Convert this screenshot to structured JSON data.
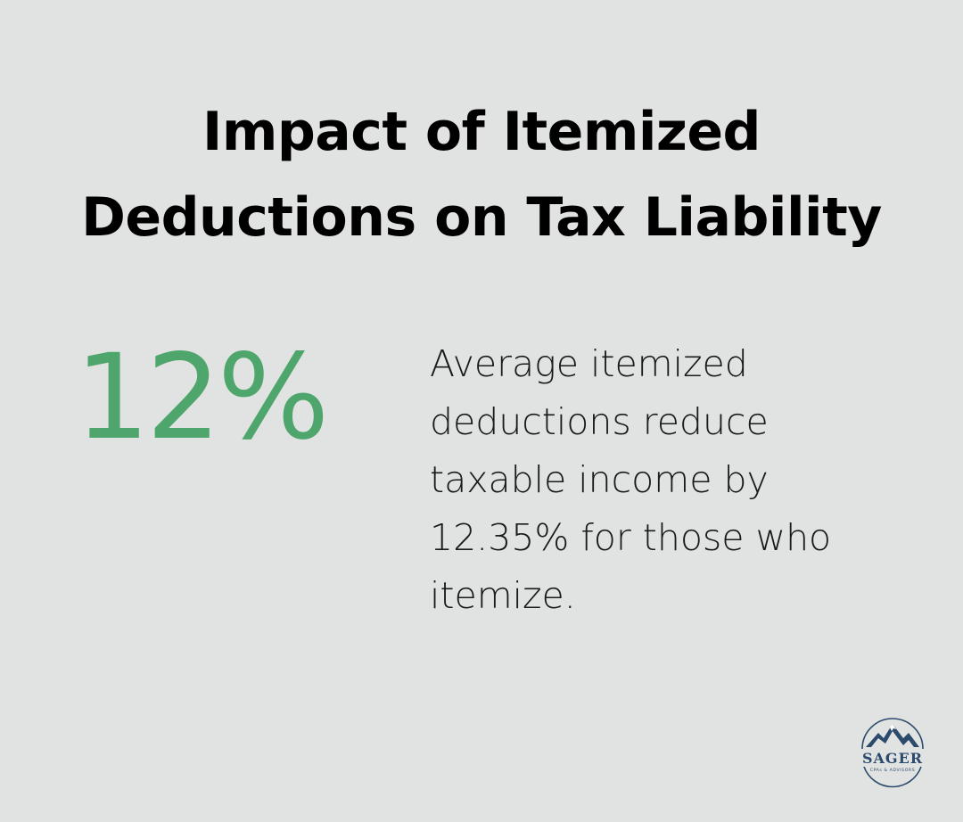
{
  "title": {
    "line1": "Impact of Itemized",
    "line2": "Deductions on Tax Liability"
  },
  "stat": {
    "value": "12%"
  },
  "description": {
    "text": "Average itemized deductions reduce taxable income by 12.35% for those who itemize."
  },
  "logo": {
    "name": "SAGER",
    "tagline": "CPAs & ADVISORS",
    "icon": "mountain-icon"
  },
  "colors": {
    "background": "#e1e3e2",
    "accent": "#4fa66c",
    "text": "#000000",
    "logo": "#2c4a6b"
  }
}
